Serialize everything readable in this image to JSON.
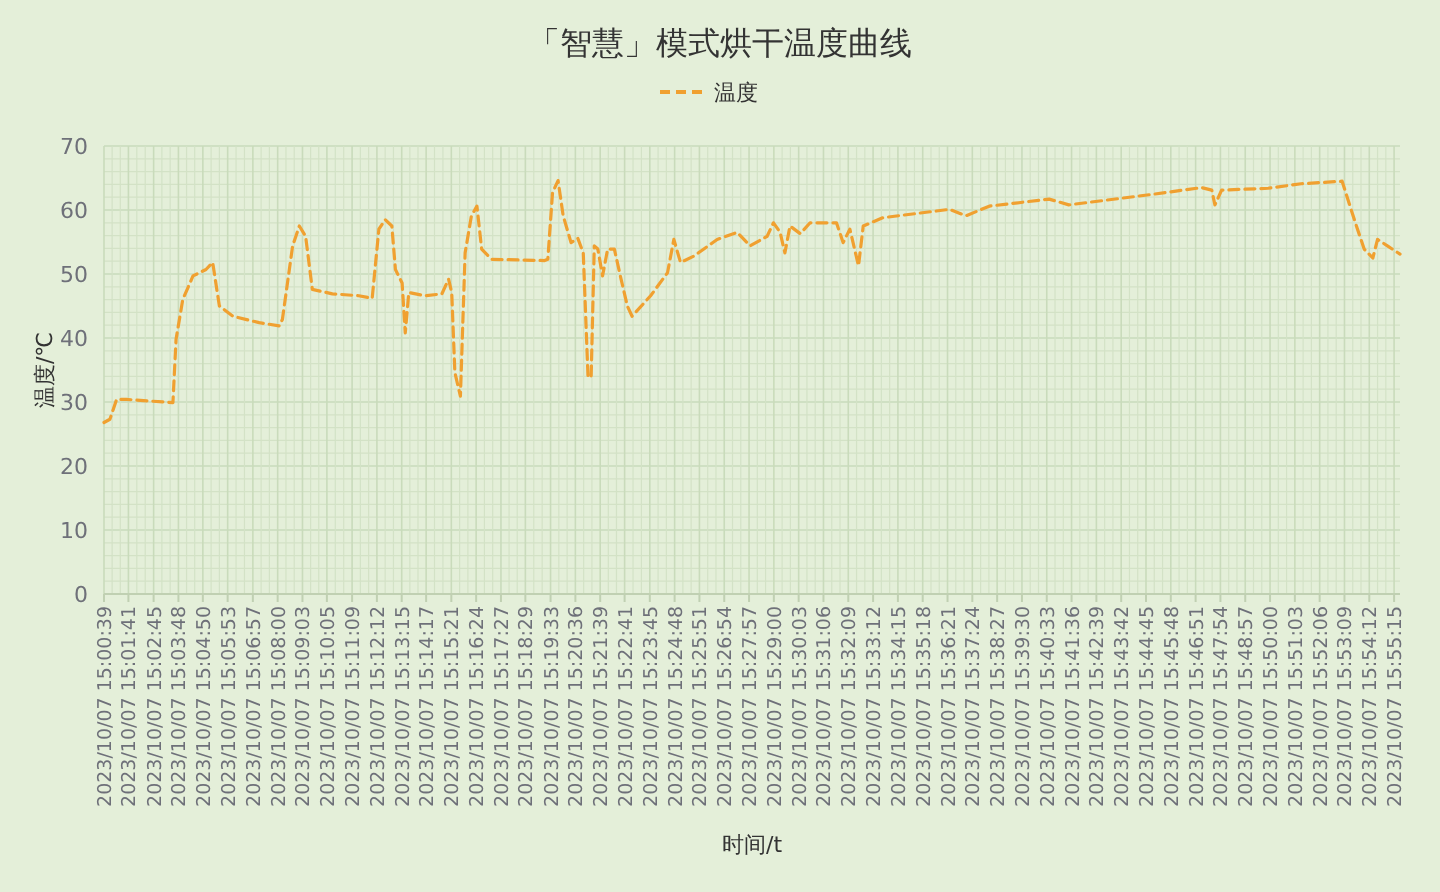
{
  "chart_data": {
    "type": "line",
    "title": "「智慧」模式烘干温度曲线",
    "xlabel": "时间/t",
    "ylabel": "温度/℃",
    "legend": "top",
    "grid": true,
    "line_style": "dashed",
    "xlim": [
      "2023-10-07T15:00:39",
      "2023-10-07T15:55:30"
    ],
    "ylim": [
      0,
      70
    ],
    "yticks": [
      0,
      10,
      20,
      30,
      40,
      50,
      60,
      70
    ],
    "xticks": [
      {
        "value": "2023-10-07T15:00:39",
        "label": "2023/10/07 15:00:39"
      },
      {
        "value": "2023-10-07T15:01:41",
        "label": "2023/10/07 15:01:41"
      },
      {
        "value": "2023-10-07T15:02:45",
        "label": "2023/10/07 15:02:45"
      },
      {
        "value": "2023-10-07T15:03:48",
        "label": "2023/10/07 15:03:48"
      },
      {
        "value": "2023-10-07T15:04:50",
        "label": "2023/10/07 15:04:50"
      },
      {
        "value": "2023-10-07T15:05:53",
        "label": "2023/10/07 15:05:53"
      },
      {
        "value": "2023-10-07T15:06:57",
        "label": "2023/10/07 15:06:57"
      },
      {
        "value": "2023-10-07T15:08:00",
        "label": "2023/10/07 15:08:00"
      },
      {
        "value": "2023-10-07T15:09:03",
        "label": "2023/10/07 15:09:03"
      },
      {
        "value": "2023-10-07T15:10:05",
        "label": "2023/10/07 15:10:05"
      },
      {
        "value": "2023-10-07T15:11:09",
        "label": "2023/10/07 15:11:09"
      },
      {
        "value": "2023-10-07T15:12:12",
        "label": "2023/10/07 15:12:12"
      },
      {
        "value": "2023-10-07T15:13:15",
        "label": "2023/10/07 15:13:15"
      },
      {
        "value": "2023-10-07T15:14:17",
        "label": "2023/10/07 15:14:17"
      },
      {
        "value": "2023-10-07T15:15:21",
        "label": "2023/10/07 15:15:21"
      },
      {
        "value": "2023-10-07T15:16:24",
        "label": "2023/10/07 15:16:24"
      },
      {
        "value": "2023-10-07T15:17:27",
        "label": "2023/10/07 15:17:27"
      },
      {
        "value": "2023-10-07T15:18:29",
        "label": "2023/10/07 15:18:29"
      },
      {
        "value": "2023-10-07T15:19:33",
        "label": "2023/10/07 15:19:33"
      },
      {
        "value": "2023-10-07T15:20:36",
        "label": "2023/10/07 15:20:36"
      },
      {
        "value": "2023-10-07T15:21:39",
        "label": "2023/10/07 15:21:39"
      },
      {
        "value": "2023-10-07T15:22:41",
        "label": "2023/10/07 15:22:41"
      },
      {
        "value": "2023-10-07T15:23:45",
        "label": "2023/10/07 15:23:45"
      },
      {
        "value": "2023-10-07T15:24:48",
        "label": "2023/10/07 15:24:48"
      },
      {
        "value": "2023-10-07T15:25:51",
        "label": "2023/10/07 15:25:51"
      },
      {
        "value": "2023-10-07T15:26:54",
        "label": "2023/10/07 15:26:54"
      },
      {
        "value": "2023-10-07T15:27:57",
        "label": "2023/10/07 15:27:57"
      },
      {
        "value": "2023-10-07T15:29:00",
        "label": "2023/10/07 15:29:00"
      },
      {
        "value": "2023-10-07T15:30:03",
        "label": "2023/10/07 15:30:03"
      },
      {
        "value": "2023-10-07T15:31:06",
        "label": "2023/10/07 15:31:06"
      },
      {
        "value": "2023-10-07T15:32:09",
        "label": "2023/10/07 15:32:09"
      },
      {
        "value": "2023-10-07T15:33:12",
        "label": "2023/10/07 15:33:12"
      },
      {
        "value": "2023-10-07T15:34:15",
        "label": "2023/10/07 15:34:15"
      },
      {
        "value": "2023-10-07T15:35:18",
        "label": "2023/10/07 15:35:18"
      },
      {
        "value": "2023-10-07T15:36:21",
        "label": "2023/10/07 15:36:21"
      },
      {
        "value": "2023-10-07T15:37:24",
        "label": "2023/10/07 15:37:24"
      },
      {
        "value": "2023-10-07T15:38:27",
        "label": "2023/10/07 15:38:27"
      },
      {
        "value": "2023-10-07T15:39:30",
        "label": "2023/10/07 15:39:30"
      },
      {
        "value": "2023-10-07T15:40:33",
        "label": "2023/10/07 15:40:33"
      },
      {
        "value": "2023-10-07T15:41:36",
        "label": "2023/10/07 15:41:36"
      },
      {
        "value": "2023-10-07T15:42:39",
        "label": "2023/10/07 15:42:39"
      },
      {
        "value": "2023-10-07T15:43:42",
        "label": "2023/10/07 15:43:42"
      },
      {
        "value": "2023-10-07T15:44:45",
        "label": "2023/10/07 15:44:45"
      },
      {
        "value": "2023-10-07T15:45:48",
        "label": "2023/10/07 15:45:48"
      },
      {
        "value": "2023-10-07T15:46:51",
        "label": "2023/10/07 15:46:51"
      },
      {
        "value": "2023-10-07T15:47:54",
        "label": "2023/10/07 15:47:54"
      },
      {
        "value": "2023-10-07T15:48:57",
        "label": "2023/10/07 15:48:57"
      },
      {
        "value": "2023-10-07T15:50:00",
        "label": "2023/10/07 15:50:00"
      },
      {
        "value": "2023-10-07T15:51:03",
        "label": "2023/10/07 15:51:03"
      },
      {
        "value": "2023-10-07T15:52:06",
        "label": "2023/10/07 15:52:06"
      },
      {
        "value": "2023-10-07T15:53:09",
        "label": "2023/10/07 15:53:09"
      },
      {
        "value": "2023-10-07T15:54:12",
        "label": "2023/10/07 15:54:12"
      },
      {
        "value": "2023-10-07T15:55:15",
        "label": "2023/10/07 15:55:15"
      }
    ],
    "x": [
      "2023-10-07T15:00:39",
      "2023-10-07T15:00:54",
      "2023-10-07T15:01:11",
      "2023-10-07T15:01:36",
      "2023-10-07T15:03:34",
      "2023-10-07T15:03:42",
      "2023-10-07T15:03:59",
      "2023-10-07T15:04:25",
      "2023-10-07T15:04:58",
      "2023-10-07T15:05:15",
      "2023-10-07T15:05:32",
      "2023-10-07T15:06:06",
      "2023-10-07T15:07:13",
      "2023-10-07T15:08:04",
      "2023-10-07T15:08:12",
      "2023-10-07T15:08:38",
      "2023-10-07T15:08:55",
      "2023-10-07T15:09:11",
      "2023-10-07T15:09:28",
      "2023-10-07T15:10:19",
      "2023-10-07T15:11:26",
      "2023-10-07T15:12:00",
      "2023-10-07T15:12:17",
      "2023-10-07T15:12:33",
      "2023-10-07T15:12:50",
      "2023-10-07T15:12:59",
      "2023-10-07T15:13:16",
      "2023-10-07T15:13:24",
      "2023-10-07T15:13:33",
      "2023-10-07T15:14:15",
      "2023-10-07T15:14:57",
      "2023-10-07T15:15:14",
      "2023-10-07T15:15:22",
      "2023-10-07T15:15:30",
      "2023-10-07T15:15:44",
      "2023-10-07T15:15:56",
      "2023-10-07T15:16:12",
      "2023-10-07T15:16:26",
      "2023-10-07T15:16:38",
      "2023-10-07T15:17:03",
      "2023-10-07T15:19:18",
      "2023-10-07T15:19:26",
      "2023-10-07T15:19:38",
      "2023-10-07T15:19:52",
      "2023-10-07T15:20:05",
      "2023-10-07T15:20:25",
      "2023-10-07T15:20:42",
      "2023-10-07T15:20:56",
      "2023-10-07T15:21:08",
      "2023-10-07T15:21:16",
      "2023-10-07T15:21:24",
      "2023-10-07T15:21:33",
      "2023-10-07T15:21:45",
      "2023-10-07T15:21:58",
      "2023-10-07T15:22:15",
      "2023-10-07T15:22:32",
      "2023-10-07T15:22:48",
      "2023-10-07T15:23:00",
      "2023-10-07T15:23:47",
      "2023-10-07T15:24:30",
      "2023-10-07T15:24:46",
      "2023-10-07T15:25:03",
      "2023-10-07T15:25:37",
      "2023-10-07T15:26:36",
      "2023-10-07T15:27:27",
      "2023-10-07T15:28:00",
      "2023-10-07T15:28:43",
      "2023-10-07T15:28:59",
      "2023-10-07T15:29:16",
      "2023-10-07T15:29:28",
      "2023-10-07T15:29:41",
      "2023-10-07T15:30:07",
      "2023-10-07T15:30:32",
      "2023-10-07T15:31:39",
      "2023-10-07T15:31:56",
      "2023-10-07T15:32:13",
      "2023-10-07T15:32:35",
      "2023-10-07T15:32:47",
      "2023-10-07T15:33:37",
      "2023-10-07T15:36:26",
      "2023-10-07T15:37:08",
      "2023-10-07T15:38:07",
      "2023-10-07T15:40:39",
      "2023-10-07T15:41:29",
      "2023-10-07T15:45:08",
      "2023-10-07T15:47:06",
      "2023-10-07T15:47:32",
      "2023-10-07T15:47:40",
      "2023-10-07T15:47:57",
      "2023-10-07T15:49:55",
      "2023-10-07T15:51:19",
      "2023-10-07T15:53:03",
      "2023-10-07T15:53:34",
      "2023-10-07T15:53:59",
      "2023-10-07T15:54:21",
      "2023-10-07T15:54:33",
      "2023-10-07T15:54:58",
      "2023-10-07T15:55:30"
    ],
    "series": [
      {
        "name": "温度",
        "color": "#f0a030",
        "values": [
          26.8,
          27.3,
          30.4,
          30.4,
          29.9,
          39.8,
          46,
          49.7,
          50.7,
          51.8,
          45,
          43.4,
          42.4,
          41.9,
          42.9,
          54.4,
          57.5,
          55.9,
          47.6,
          46.9,
          46.6,
          46.2,
          57,
          58.5,
          57.5,
          50.7,
          48.6,
          40.8,
          47.1,
          46.6,
          46.9,
          49.2,
          47.1,
          34.6,
          30.9,
          53.3,
          59.1,
          60.6,
          53.9,
          52.3,
          52.1,
          52.3,
          62.7,
          64.6,
          59.1,
          54.9,
          55.6,
          53.3,
          34.1,
          33.8,
          54.4,
          53.9,
          49.7,
          53.9,
          53.9,
          49.2,
          45,
          43.4,
          46.6,
          50.2,
          55.4,
          51.8,
          52.8,
          55.4,
          56.5,
          54.4,
          55.9,
          58,
          56.5,
          53.3,
          57.5,
          56.3,
          58,
          58,
          54.9,
          57,
          51.3,
          57.5,
          58.8,
          60.1,
          59.1,
          60.6,
          61.7,
          60.8,
          62.5,
          63.5,
          63.1,
          60.8,
          63.1,
          63.4,
          64.1,
          64.5,
          58.5,
          53.9,
          52.5,
          55.4,
          54.4,
          53.1
        ]
      }
    ]
  }
}
